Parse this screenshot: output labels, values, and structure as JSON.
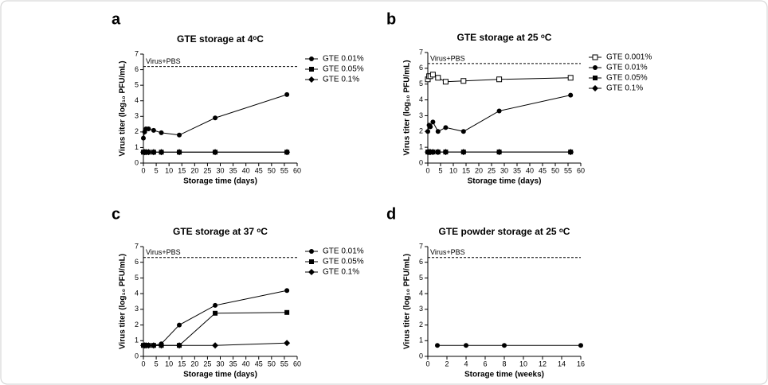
{
  "chart_data": [
    {
      "type": "line",
      "panel_label": "a",
      "title": "GTE storage at 4ᵒC",
      "x_label": "Storage time (days)",
      "y_label": "Virus titer (log₁₀ PFU/mL)",
      "x": [
        0,
        0.5,
        1,
        2,
        4,
        7,
        14,
        28,
        56
      ],
      "xlim": [
        0,
        60
      ],
      "xticks": [
        0,
        5,
        10,
        15,
        20,
        25,
        30,
        35,
        40,
        45,
        50,
        55,
        60
      ],
      "ylim": [
        0,
        7
      ],
      "yticks": [
        0,
        1,
        2,
        3,
        4,
        5,
        6,
        7
      ],
      "reference": 6.2,
      "reference_label": "Virus+PBS",
      "series": [
        {
          "name": "GTE 0.01%",
          "color": "#000000",
          "marker": "circle",
          "values": [
            1.6,
            2.0,
            2.2,
            2.2,
            2.1,
            1.95,
            1.8,
            2.9,
            4.4
          ]
        },
        {
          "name": "GTE 0.05%",
          "color": "#000000",
          "marker": "square",
          "values": [
            0.7,
            0.7,
            0.7,
            0.7,
            0.7,
            0.7,
            0.7,
            0.7,
            0.7
          ]
        },
        {
          "name": "GTE 0.1%",
          "color": "#000000",
          "marker": "diamond",
          "values": [
            0.7,
            0.7,
            0.7,
            0.7,
            0.7,
            0.7,
            0.7,
            0.7,
            0.7
          ]
        }
      ]
    },
    {
      "type": "line",
      "panel_label": "b",
      "title": "GTE storage at 25 ᵒC",
      "x_label": "Storage time (days)",
      "y_label": "Virus titer (log₁₀ PFU/mL)",
      "x": [
        0,
        0.5,
        1,
        2,
        4,
        7,
        14,
        28,
        56
      ],
      "xlim": [
        0,
        60
      ],
      "xticks": [
        0,
        5,
        10,
        15,
        20,
        25,
        30,
        35,
        40,
        45,
        50,
        55,
        60
      ],
      "ylim": [
        0,
        7
      ],
      "yticks": [
        0,
        1,
        2,
        3,
        4,
        5,
        6,
        7
      ],
      "reference": 6.3,
      "reference_label": "Virus+PBS",
      "series": [
        {
          "name": "GTE 0.001%",
          "color": "#000000",
          "marker": "open-square",
          "values": [
            5.3,
            5.5,
            5.5,
            5.6,
            5.4,
            5.15,
            5.2,
            5.3,
            5.4
          ]
        },
        {
          "name": "GTE 0.01%",
          "color": "#000000",
          "marker": "circle",
          "values": [
            2.0,
            2.4,
            2.3,
            2.6,
            2.0,
            2.25,
            2.0,
            3.3,
            4.3
          ]
        },
        {
          "name": "GTE 0.05%",
          "color": "#000000",
          "marker": "square",
          "values": [
            0.7,
            0.7,
            0.7,
            0.7,
            0.7,
            0.7,
            0.7,
            0.7,
            0.7
          ]
        },
        {
          "name": "GTE 0.1%",
          "color": "#000000",
          "marker": "diamond",
          "values": [
            0.7,
            0.7,
            0.7,
            0.7,
            0.7,
            0.7,
            0.7,
            0.7,
            0.7
          ]
        }
      ]
    },
    {
      "type": "line",
      "panel_label": "c",
      "title": "GTE storage at 37 ᵒC",
      "x_label": "Storage time (days)",
      "y_label": "Virus titer (log₁₀ PFU/mL)",
      "x": [
        0,
        0.5,
        1,
        2,
        4,
        7,
        14,
        28,
        56
      ],
      "xlim": [
        0,
        60
      ],
      "xticks": [
        0,
        5,
        10,
        15,
        20,
        25,
        30,
        35,
        40,
        45,
        50,
        55,
        60
      ],
      "ylim": [
        0,
        7
      ],
      "yticks": [
        0,
        1,
        2,
        3,
        4,
        5,
        6,
        7
      ],
      "reference": 6.3,
      "reference_label": "Virus+PBS",
      "series": [
        {
          "name": "GTE 0.01%",
          "color": "#000000",
          "marker": "circle",
          "values": [
            0.7,
            0.7,
            0.7,
            0.7,
            0.7,
            0.8,
            2.0,
            3.25,
            4.2
          ]
        },
        {
          "name": "GTE 0.05%",
          "color": "#000000",
          "marker": "square",
          "values": [
            0.7,
            0.7,
            0.7,
            0.7,
            0.7,
            0.7,
            0.7,
            2.75,
            2.8
          ]
        },
        {
          "name": "GTE 0.1%",
          "color": "#000000",
          "marker": "diamond",
          "values": [
            0.7,
            0.7,
            0.7,
            0.7,
            0.7,
            0.7,
            0.7,
            0.7,
            0.85
          ]
        }
      ]
    },
    {
      "type": "line",
      "panel_label": "d",
      "title": "GTE powder storage at 25 ᵒC",
      "x_label": "Storage time (weeks)",
      "y_label": "Virus titer (log₁₀ PFU/mL)",
      "x": [
        1,
        4,
        8,
        16
      ],
      "xlim": [
        0,
        16
      ],
      "xticks": [
        0,
        2,
        4,
        6,
        8,
        10,
        12,
        14,
        16
      ],
      "ylim": [
        0,
        7
      ],
      "yticks": [
        0,
        1,
        2,
        3,
        4,
        5,
        6,
        7
      ],
      "reference": 6.3,
      "reference_label": "Virus+PBS",
      "series": [
        {
          "color": "#000000",
          "marker": "circle",
          "values": [
            0.7,
            0.7,
            0.7,
            0.7
          ]
        }
      ]
    }
  ]
}
